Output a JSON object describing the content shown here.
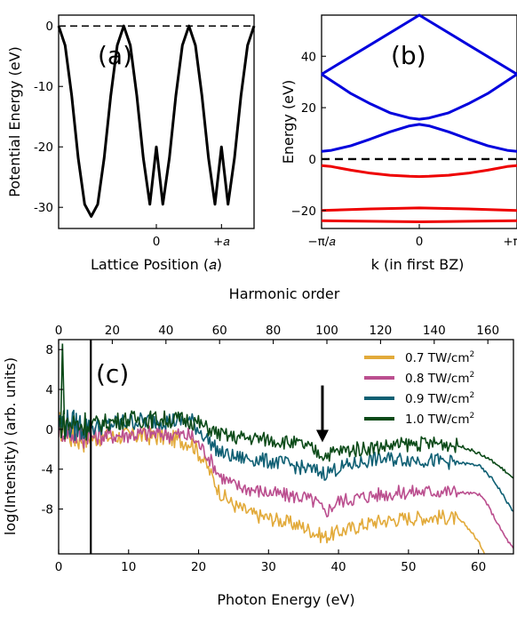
{
  "chart_data": [
    {
      "id": "a",
      "type": "line",
      "panel_label": "(a)",
      "xlabel": "Lattice Position (𝑎)",
      "ylabel": "Potential Energy (eV)",
      "xlim": [
        -1.5,
        1.5
      ],
      "ylim": [
        -33.5,
        1.8
      ],
      "x_ticks": [
        {
          "value": 0,
          "label": "0"
        },
        {
          "value": 1,
          "label": "+𝑎"
        }
      ],
      "y_ticks": [
        {
          "value": 0,
          "label": "0"
        },
        {
          "value": -10,
          "label": "-10"
        },
        {
          "value": -20,
          "label": "-20"
        },
        {
          "value": -30,
          "label": "-30"
        }
      ],
      "reference_line": {
        "y": 0,
        "style": "dashed",
        "color": "#000000"
      },
      "series": [
        {
          "color": "#000000",
          "x": [
            -1.5,
            -1.4,
            -1.3,
            -1.2,
            -1.1,
            -1.0,
            -0.9,
            -0.8,
            -0.7,
            -0.6,
            -0.5,
            -0.4,
            -0.3,
            -0.2,
            -0.1,
            0.0,
            0.1,
            0.2,
            0.3,
            0.4,
            0.5,
            0.6,
            0.7,
            0.8,
            0.9,
            1.0,
            1.1,
            1.2,
            1.3,
            1.4,
            1.5
          ],
          "y": [
            0,
            -3.2,
            -11.5,
            -21.8,
            -29.5,
            -31.5,
            -29.5,
            -21.8,
            -11.5,
            -3.2,
            0,
            -3.2,
            -11.5,
            -21.8,
            -29.5,
            -20.0,
            -29.5,
            -21.8,
            -11.5,
            -3.2,
            0,
            -3.2,
            -11.5,
            -21.8,
            -29.5,
            -20.0,
            -29.5,
            -21.8,
            -11.5,
            -3.2,
            0
          ]
        }
      ]
    },
    {
      "id": "b",
      "type": "line",
      "panel_label": "(b)",
      "xlabel": "k (in first BZ)",
      "ylabel": "Energy (eV)",
      "xlim": [
        -1,
        1
      ],
      "ylim": [
        -27,
        56
      ],
      "x_ticks": [
        {
          "value": -1,
          "label": "−π/𝑎"
        },
        {
          "value": 0,
          "label": "0"
        },
        {
          "value": 1,
          "label": "+π/𝑎"
        }
      ],
      "y_ticks": [
        {
          "value": -20,
          "label": "−20"
        },
        {
          "value": 0,
          "label": "0"
        },
        {
          "value": 20,
          "label": "20"
        },
        {
          "value": 40,
          "label": "40"
        }
      ],
      "reference_line": {
        "y": 0,
        "style": "dashed",
        "color": "#000000"
      },
      "series": [
        {
          "color": "#0000dd",
          "x": [
            -1,
            -0.5,
            0,
            0.5,
            1
          ],
          "y": [
            33,
            44.5,
            56,
            44.5,
            33
          ]
        },
        {
          "color": "#0000dd",
          "x": [
            -1,
            -0.9,
            -0.7,
            -0.5,
            -0.3,
            -0.1,
            0,
            0.1,
            0.3,
            0.5,
            0.7,
            0.9,
            1
          ],
          "y": [
            33,
            30.5,
            25.5,
            21.5,
            18,
            16,
            15.5,
            16,
            18,
            21.5,
            25.5,
            30.5,
            33
          ]
        },
        {
          "color": "#0000dd",
          "x": [
            -1,
            -0.9,
            -0.7,
            -0.5,
            -0.3,
            -0.1,
            0,
            0.1,
            0.3,
            0.5,
            0.7,
            0.9,
            1
          ],
          "y": [
            3,
            3.4,
            5.2,
            7.8,
            10.6,
            12.9,
            13.5,
            12.9,
            10.6,
            7.8,
            5.2,
            3.4,
            3
          ]
        },
        {
          "color": "#ee0000",
          "x": [
            -1,
            -0.9,
            -0.7,
            -0.5,
            -0.3,
            -0.1,
            0,
            0.1,
            0.3,
            0.5,
            0.7,
            0.9,
            1
          ],
          "y": [
            -2.5,
            -2.9,
            -4.3,
            -5.5,
            -6.3,
            -6.7,
            -6.8,
            -6.7,
            -6.3,
            -5.5,
            -4.3,
            -2.9,
            -2.5
          ]
        },
        {
          "color": "#ee0000",
          "x": [
            -1,
            -0.5,
            0,
            0.5,
            1
          ],
          "y": [
            -20,
            -19.4,
            -19,
            -19.4,
            -20
          ]
        },
        {
          "color": "#ee0000",
          "x": [
            -1,
            -0.5,
            0,
            0.5,
            1
          ],
          "y": [
            -24,
            -24.2,
            -24.4,
            -24.2,
            -24
          ]
        }
      ]
    },
    {
      "id": "c",
      "type": "line",
      "panel_label": "(c)",
      "xlabel": "Photon Energy (eV)",
      "ylabel": "log(Intensity) (arb. units)",
      "top_xlabel": "Harmonic order",
      "xlim": [
        0,
        65
      ],
      "ylim": [
        -12.5,
        9
      ],
      "x_ticks": [
        {
          "value": 0,
          "label": "0"
        },
        {
          "value": 10,
          "label": "10"
        },
        {
          "value": 20,
          "label": "20"
        },
        {
          "value": 30,
          "label": "30"
        },
        {
          "value": 40,
          "label": "40"
        },
        {
          "value": 50,
          "label": "50"
        },
        {
          "value": 60,
          "label": "60"
        }
      ],
      "top_x_ticks": [
        {
          "value": 0,
          "label": "0"
        },
        {
          "value": 20,
          "label": "20"
        },
        {
          "value": 40,
          "label": "40"
        },
        {
          "value": 60,
          "label": "60"
        },
        {
          "value": 80,
          "label": "80"
        },
        {
          "value": 100,
          "label": "100"
        },
        {
          "value": 120,
          "label": "120"
        },
        {
          "value": 140,
          "label": "140"
        },
        {
          "value": 160,
          "label": "160"
        }
      ],
      "top_x_scale": 0.3834,
      "y_ticks": [
        {
          "value": 8,
          "label": "8"
        },
        {
          "value": 4,
          "label": "4"
        },
        {
          "value": 0,
          "label": "0"
        },
        {
          "value": -4,
          "label": "-4"
        },
        {
          "value": -8,
          "label": "-8"
        }
      ],
      "vertical_line_x": 4.6,
      "arrow": {
        "x": 37.7,
        "y_from": 4.4,
        "y_to": -1.3
      },
      "legend": {
        "placement": "top-right",
        "unit_superscript": "2"
      },
      "series": [
        {
          "name": "0.7 TW/cm",
          "color": "#e2aa3a",
          "x": [
            0,
            2,
            5,
            10,
            15,
            19,
            21,
            23,
            25,
            28,
            32,
            35,
            37,
            38,
            40,
            45,
            50,
            55,
            57,
            58,
            59,
            60,
            61
          ],
          "y": [
            0.4,
            -0.6,
            -0.9,
            -0.6,
            -0.8,
            -1.3,
            -3.4,
            -6.3,
            -7.6,
            -8.6,
            -9.2,
            -9.8,
            -10.5,
            -10.8,
            -10.3,
            -9.3,
            -8.9,
            -8.8,
            -9.0,
            -9.5,
            -10.3,
            -11.3,
            -12.5
          ]
        },
        {
          "name": "0.8 TW/cm",
          "color": "#bb4f8f",
          "x": [
            0,
            2,
            5,
            10,
            15,
            19,
            21,
            23,
            25,
            28,
            32,
            35,
            37,
            38,
            40,
            45,
            50,
            55,
            60,
            61,
            62,
            63,
            64,
            65
          ],
          "y": [
            0.4,
            -0.3,
            -0.7,
            -0.5,
            -0.4,
            -0.7,
            -2.3,
            -4.6,
            -5.6,
            -6.1,
            -6.6,
            -6.8,
            -7.4,
            -8.4,
            -7.2,
            -6.6,
            -6.3,
            -6.2,
            -6.5,
            -7.2,
            -8.5,
            -9.8,
            -11.0,
            -12.0
          ]
        },
        {
          "name": "0.9 TW/cm",
          "color": "#0e5f73",
          "x": [
            0,
            2,
            5,
            10,
            15,
            19,
            21,
            23,
            25,
            28,
            32,
            35,
            37,
            38,
            40,
            45,
            50,
            55,
            60,
            62,
            63,
            64,
            65
          ],
          "y": [
            0.6,
            0.4,
            0.2,
            0.8,
            0.9,
            0.8,
            -0.8,
            -2.3,
            -2.8,
            -3.0,
            -3.4,
            -3.9,
            -4.2,
            -4.4,
            -3.9,
            -3.0,
            -3.0,
            -3.2,
            -3.6,
            -5.0,
            -6.0,
            -7.2,
            -8.3
          ]
        },
        {
          "name": "1.0 TW/cm",
          "color": "#0b4a18",
          "x": [
            0,
            2,
            5,
            10,
            15,
            19,
            21,
            23,
            25,
            28,
            32,
            35,
            37,
            38,
            40,
            45,
            50,
            55,
            58,
            60,
            62,
            64,
            65
          ],
          "y": [
            0.6,
            0.5,
            0.5,
            1.0,
            1.0,
            0.9,
            0.2,
            -0.5,
            -0.8,
            -0.9,
            -1.2,
            -1.6,
            -2.3,
            -2.6,
            -2.2,
            -1.8,
            -1.5,
            -1.4,
            -1.8,
            -2.4,
            -3.2,
            -4.3,
            -5.0
          ]
        }
      ]
    }
  ]
}
